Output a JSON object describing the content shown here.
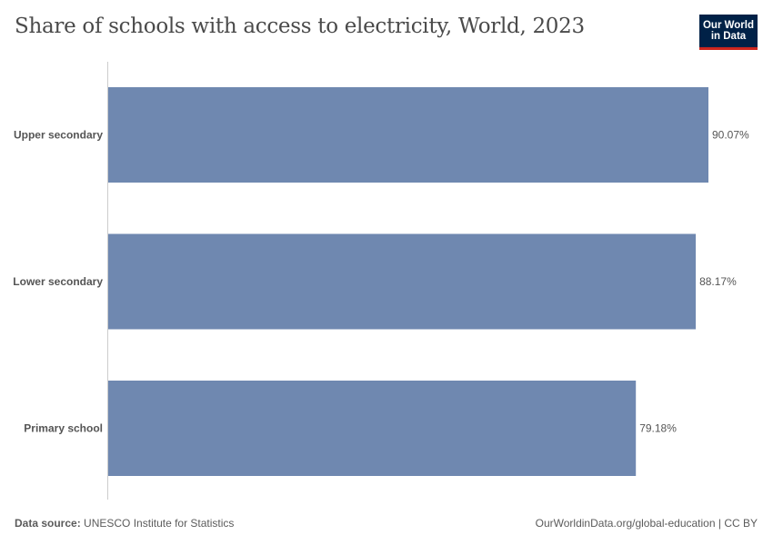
{
  "title": "Share of schools with access to electricity, World, 2023",
  "logo": {
    "line1": "Our World",
    "line2": "in Data"
  },
  "chart_data": {
    "type": "bar",
    "orientation": "horizontal",
    "categories": [
      "Upper secondary",
      "Lower secondary",
      "Primary school"
    ],
    "values": [
      90.07,
      88.17,
      79.18
    ],
    "labels": [
      "90.07%",
      "88.17%",
      "79.18%"
    ],
    "unit": "%",
    "bar_color": "#6f88b0",
    "grid": false
  },
  "footer": {
    "source_label": "Data source:",
    "source": "UNESCO Institute for Statistics",
    "url": "OurWorldinData.org/global-education | CC BY"
  }
}
